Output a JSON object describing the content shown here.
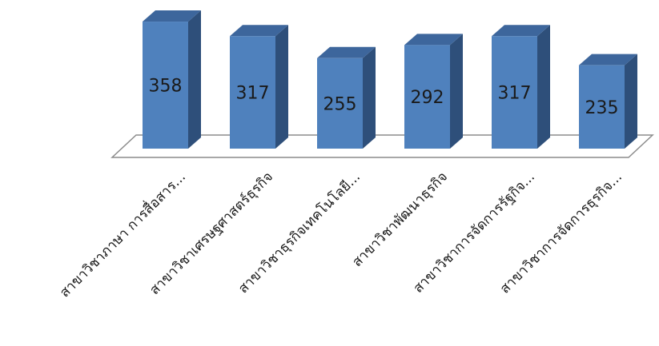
{
  "chart_data": {
    "type": "bar",
    "style": "3d-column",
    "categories": [
      "สาขาวิชาภาษา การสื่อสาร...",
      "สาขาวิชาเศรษฐศาสตร์ธุรกิจ",
      "สาขาวิชาธุรกิจเทคโนโลยี...",
      "สาขาวิชาพัฒนาธุรกิจ",
      "สาขาวิชาการจัดการรัฐกิจ...",
      "สาขาวิชาการจัดการธุรกิจ..."
    ],
    "values": [
      358,
      317,
      255,
      292,
      317,
      235
    ],
    "data_labels": [
      "358",
      "317",
      "255",
      "292",
      "317",
      "235"
    ],
    "ylim": [
      0,
      380
    ],
    "grid": false,
    "legend": "none",
    "colors": {
      "bar_front": "#4f81bd",
      "bar_side": "#2e4f7a",
      "bar_top": "#3d669c",
      "floor_stroke": "#8c8c8c"
    }
  }
}
